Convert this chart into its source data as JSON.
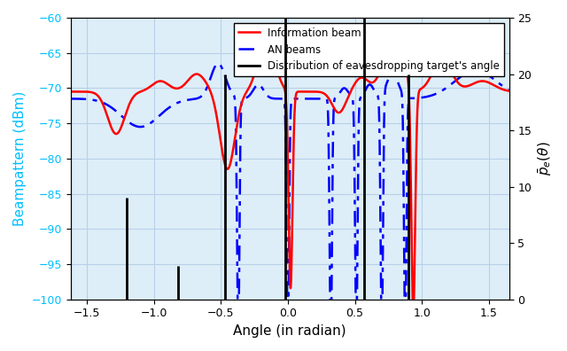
{
  "xlabel": "Angle (in radian)",
  "ylabel_left": "Beampattern (dBm)",
  "ylabel_right": "$\\bar{p}_e(\\theta)$",
  "xlim": [
    -1.62,
    1.65
  ],
  "ylim_left": [
    -100,
    -60
  ],
  "ylim_right": [
    0,
    25
  ],
  "yticks_left": [
    -100,
    -95,
    -90,
    -85,
    -80,
    -75,
    -70,
    -65,
    -60
  ],
  "yticks_right": [
    0,
    5,
    10,
    15,
    20,
    25
  ],
  "xticks": [
    -1.5,
    -1.0,
    -0.5,
    0.0,
    0.5,
    1.0,
    1.5
  ],
  "info_beam_color": "#FF0000",
  "an_beam_color": "#0000FF",
  "dist_color": "#000000",
  "grid_color": "#b8d0e8",
  "background_color": "#ddeef8",
  "spike_data": [
    [
      -1.2,
      9.0
    ],
    [
      -0.82,
      3.0
    ],
    [
      -0.47,
      20.0
    ],
    [
      -0.02,
      25.0
    ],
    [
      0.57,
      25.0
    ],
    [
      0.9,
      20.0
    ]
  ],
  "legend_info": "Information beam",
  "legend_an": "AN beams",
  "legend_dist": "Distribution of eavesdropping target's angle",
  "ylabel_left_color": "#00BFFF"
}
